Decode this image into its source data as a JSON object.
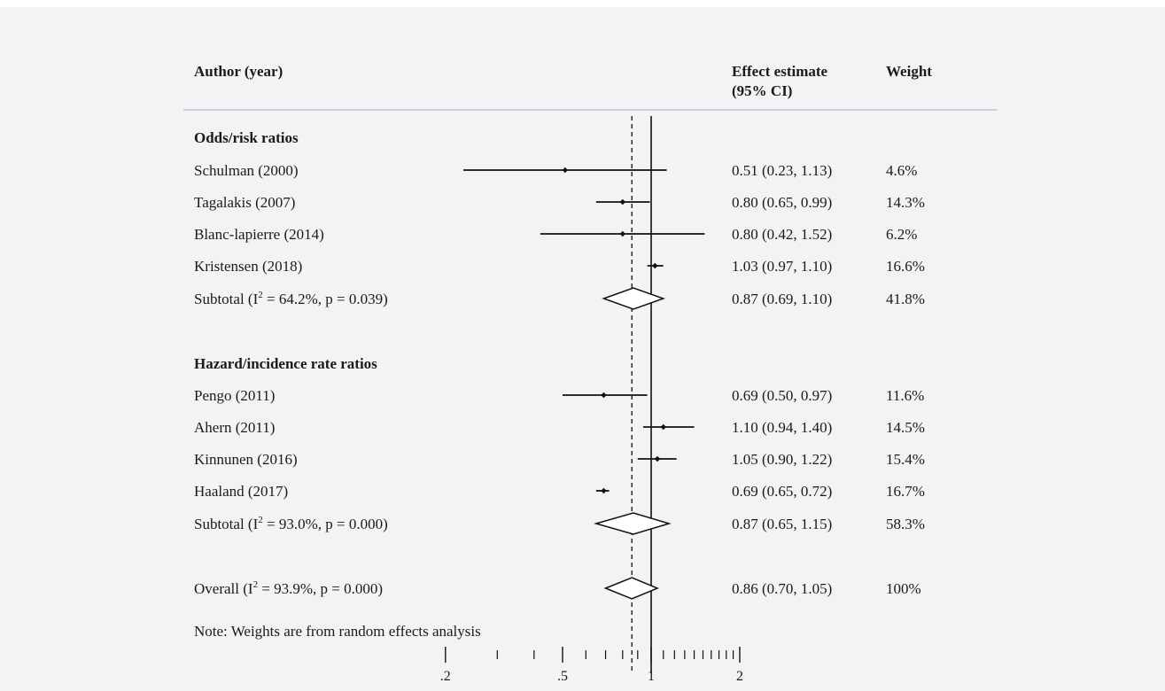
{
  "headers": {
    "author": "Author (year)",
    "effect_line1": "Effect estimate",
    "effect_line2": "(95% CI)",
    "weight": "Weight"
  },
  "note": "Note: Weights are from random effects analysis",
  "chart_data": {
    "type": "forest",
    "scale": "log",
    "xlim": [
      0.2,
      2
    ],
    "x_tick_labels": [
      ".2",
      ".5",
      "1",
      "2"
    ],
    "x_tick_values": [
      0.2,
      0.5,
      1,
      2
    ],
    "minor_ticks": [
      0.3,
      0.4,
      0.6,
      0.7,
      0.8,
      0.9,
      1.1,
      1.2,
      1.3,
      1.4,
      1.5,
      1.6,
      1.7,
      1.8,
      1.9
    ],
    "null_line": 1,
    "overall_line": 0.86,
    "groups": [
      {
        "name": "Odds/risk ratios",
        "studies": [
          {
            "label": "Schulman (2000)",
            "est": 0.51,
            "lo": 0.23,
            "hi": 1.13,
            "ci_text": "0.51 (0.23, 1.13)",
            "weight": "4.6%"
          },
          {
            "label": "Tagalakis (2007)",
            "est": 0.8,
            "lo": 0.65,
            "hi": 0.99,
            "ci_text": "0.80 (0.65, 0.99)",
            "weight": "14.3%"
          },
          {
            "label": "Blanc-lapierre (2014)",
            "est": 0.8,
            "lo": 0.42,
            "hi": 1.52,
            "ci_text": "0.80 (0.42, 1.52)",
            "weight": "6.2%"
          },
          {
            "label": "Kristensen (2018)",
            "est": 1.03,
            "lo": 0.97,
            "hi": 1.1,
            "ci_text": "1.03 (0.97, 1.10)",
            "weight": "16.6%"
          }
        ],
        "subtotal": {
          "label_prefix": "Subtotal  (I",
          "sup": "2",
          "label_suffix": " = 64.2%, p = 0.039)",
          "est": 0.87,
          "lo": 0.69,
          "hi": 1.1,
          "ci_text": "0.87 (0.69, 1.10)",
          "weight": "41.8%"
        }
      },
      {
        "name": "Hazard/incidence rate ratios",
        "studies": [
          {
            "label": "Pengo (2011)",
            "est": 0.69,
            "lo": 0.5,
            "hi": 0.97,
            "ci_text": "0.69 (0.50, 0.97)",
            "weight": "11.6%"
          },
          {
            "label": "Ahern (2011)",
            "est": 1.1,
            "lo": 0.94,
            "hi": 1.4,
            "ci_text": "1.10 (0.94, 1.40)",
            "weight": "14.5%"
          },
          {
            "label": "Kinnunen (2016)",
            "est": 1.05,
            "lo": 0.9,
            "hi": 1.22,
            "ci_text": "1.05 (0.90, 1.22)",
            "weight": "15.4%"
          },
          {
            "label": "Haaland (2017)",
            "est": 0.69,
            "lo": 0.65,
            "hi": 0.72,
            "ci_text": "0.69 (0.65, 0.72)",
            "weight": "16.7%"
          }
        ],
        "subtotal": {
          "label_prefix": "Subtotal  (I",
          "sup": "2",
          "label_suffix": " = 93.0%, p = 0.000)",
          "est": 0.87,
          "lo": 0.65,
          "hi": 1.15,
          "ci_text": "0.87 (0.65, 1.15)",
          "weight": "58.3%"
        }
      }
    ],
    "overall": {
      "label_prefix": "Overall  (I",
      "sup": "2",
      "label_suffix": " = 93.9%, p = 0.000)",
      "est": 0.86,
      "lo": 0.7,
      "hi": 1.05,
      "ci_text": "0.86 (0.70, 1.05)",
      "weight": "100%"
    }
  }
}
